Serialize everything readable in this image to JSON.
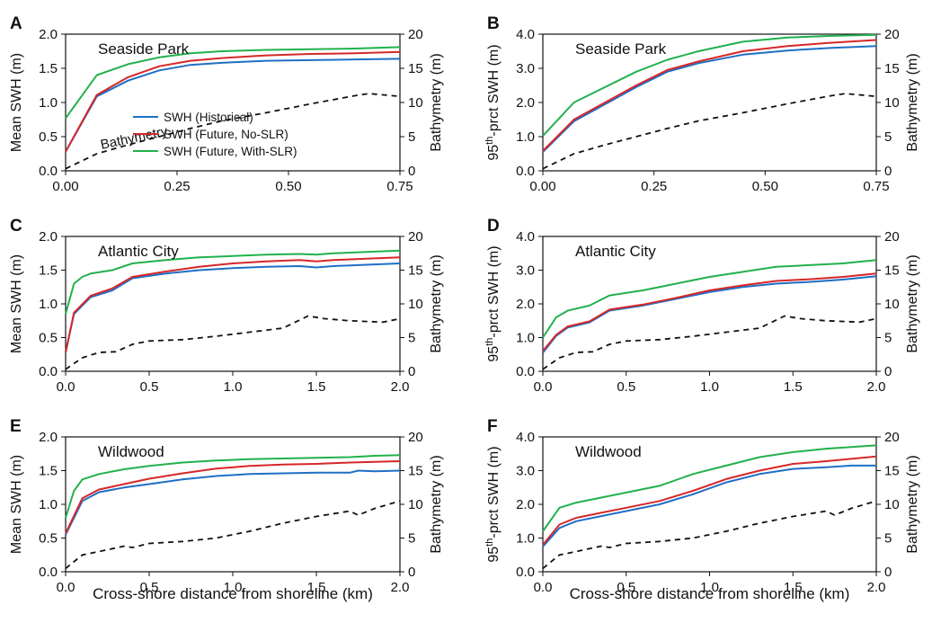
{
  "figure": {
    "xlabel": "Cross-shore distance from shoreline (km)"
  },
  "legend": [
    {
      "label": "SWH (Historical)",
      "color": "#1f6fc5"
    },
    {
      "label": "SWH (Future, No-SLR)",
      "color": "#d62728"
    },
    {
      "label": "SWH (Future, With-SLR)",
      "color": "#22b14c"
    }
  ],
  "chart_data": [
    {
      "panel": "A",
      "type": "line",
      "title": "Seaside Park",
      "ylabel": "Mean SWH (m)",
      "y2label": "Bathymetry (m)",
      "xlim": [
        0,
        0.75
      ],
      "xticks": [
        0,
        0.25,
        0.5,
        0.75
      ],
      "xtick_labels": [
        "0.00",
        "0.25",
        "0.50",
        "0.75"
      ],
      "ylim": [
        0,
        2.0
      ],
      "yticks": [
        0,
        0.5,
        1.0,
        1.5,
        2.0
      ],
      "ytick_labels": [
        "0.0",
        "0.5",
        "1.0",
        "1.5",
        "2.0"
      ],
      "y2lim": [
        0,
        20
      ],
      "y2ticks": [
        0,
        5,
        10,
        15,
        20
      ],
      "annotation": "Bathymetry",
      "series": [
        {
          "name": "SWH (Historical)",
          "color": "#1f6fc5",
          "x": [
            0,
            0.07,
            0.14,
            0.21,
            0.28,
            0.35,
            0.45,
            0.55,
            0.65,
            0.75
          ],
          "y": [
            0.28,
            1.09,
            1.32,
            1.47,
            1.55,
            1.58,
            1.61,
            1.62,
            1.63,
            1.64
          ]
        },
        {
          "name": "SWH (Future, No-SLR)",
          "color": "#d62728",
          "x": [
            0,
            0.07,
            0.14,
            0.21,
            0.28,
            0.35,
            0.45,
            0.55,
            0.65,
            0.75
          ],
          "y": [
            0.28,
            1.11,
            1.37,
            1.53,
            1.61,
            1.65,
            1.69,
            1.71,
            1.72,
            1.74
          ]
        },
        {
          "name": "SWH (Future, With-SLR)",
          "color": "#22b14c",
          "x": [
            0,
            0.07,
            0.14,
            0.21,
            0.28,
            0.35,
            0.45,
            0.55,
            0.65,
            0.75
          ],
          "y": [
            0.77,
            1.4,
            1.56,
            1.66,
            1.72,
            1.75,
            1.77,
            1.78,
            1.79,
            1.81
          ]
        },
        {
          "name": "Bathymetry",
          "color": "#111111",
          "dashed": true,
          "axis": "right",
          "x": [
            0,
            0.07,
            0.14,
            0.21,
            0.28,
            0.35,
            0.45,
            0.55,
            0.65,
            0.68,
            0.75
          ],
          "y": [
            0.3,
            2.5,
            3.8,
            5.0,
            6.2,
            7.3,
            8.5,
            9.8,
            11.0,
            11.3,
            10.9
          ]
        }
      ]
    },
    {
      "panel": "B",
      "type": "line",
      "title": "Seaside Park",
      "ylabel": "95th-prct SWH (m)",
      "ylabel_main": "95",
      "ylabel_sup": "th",
      "ylabel_rest": "-prct SWH (m)",
      "y2label": "Bathymetry (m)",
      "xlim": [
        0,
        0.75
      ],
      "xticks": [
        0,
        0.25,
        0.5,
        0.75
      ],
      "xtick_labels": [
        "0.00",
        "0.25",
        "0.50",
        "0.75"
      ],
      "ylim": [
        0,
        4.0
      ],
      "yticks": [
        0,
        1,
        2,
        3,
        4
      ],
      "ytick_labels": [
        "0.0",
        "1.0",
        "2.0",
        "3.0",
        "4.0"
      ],
      "y2lim": [
        0,
        20
      ],
      "y2ticks": [
        0,
        5,
        10,
        15,
        20
      ],
      "series": [
        {
          "name": "SWH (Historical)",
          "color": "#1f6fc5",
          "x": [
            0,
            0.07,
            0.14,
            0.21,
            0.28,
            0.35,
            0.45,
            0.55,
            0.65,
            0.75
          ],
          "y": [
            0.55,
            1.45,
            1.95,
            2.45,
            2.9,
            3.15,
            3.4,
            3.52,
            3.6,
            3.65
          ]
        },
        {
          "name": "SWH (Future, No-SLR)",
          "color": "#d62728",
          "x": [
            0,
            0.07,
            0.14,
            0.21,
            0.28,
            0.35,
            0.45,
            0.55,
            0.65,
            0.75
          ],
          "y": [
            0.58,
            1.5,
            2.0,
            2.5,
            2.95,
            3.2,
            3.5,
            3.65,
            3.75,
            3.83
          ]
        },
        {
          "name": "SWH (Future, With-SLR)",
          "color": "#22b14c",
          "x": [
            0,
            0.07,
            0.14,
            0.21,
            0.28,
            0.35,
            0.45,
            0.55,
            0.65,
            0.75
          ],
          "y": [
            1.02,
            2.0,
            2.45,
            2.9,
            3.25,
            3.5,
            3.78,
            3.9,
            3.95,
            3.98
          ]
        },
        {
          "name": "Bathymetry",
          "color": "#111111",
          "dashed": true,
          "axis": "right",
          "x": [
            0,
            0.07,
            0.14,
            0.21,
            0.28,
            0.35,
            0.45,
            0.55,
            0.65,
            0.68,
            0.75
          ],
          "y": [
            0.3,
            2.5,
            3.8,
            5.0,
            6.2,
            7.3,
            8.5,
            9.8,
            11.0,
            11.3,
            10.9
          ]
        }
      ]
    },
    {
      "panel": "C",
      "type": "line",
      "title": "Atlantic City",
      "ylabel": "Mean SWH (m)",
      "y2label": "Bathymetry (m)",
      "xlim": [
        0,
        2.0
      ],
      "xticks": [
        0,
        0.5,
        1.0,
        1.5,
        2.0
      ],
      "xtick_labels": [
        "0.0",
        "0.5",
        "1.0",
        "1.5",
        "2.0"
      ],
      "ylim": [
        0,
        2.0
      ],
      "yticks": [
        0,
        0.5,
        1.0,
        1.5,
        2.0
      ],
      "ytick_labels": [
        "0.0",
        "0.5",
        "1.0",
        "1.5",
        "2.0"
      ],
      "y2lim": [
        0,
        20
      ],
      "y2ticks": [
        0,
        5,
        10,
        15,
        20
      ],
      "series": [
        {
          "name": "SWH (Historical)",
          "color": "#1f6fc5",
          "x": [
            0,
            0.05,
            0.15,
            0.28,
            0.4,
            0.6,
            0.8,
            1.0,
            1.2,
            1.4,
            1.5,
            1.6,
            1.8,
            2.0
          ],
          "y": [
            0.28,
            0.85,
            1.1,
            1.2,
            1.38,
            1.45,
            1.5,
            1.53,
            1.55,
            1.56,
            1.54,
            1.56,
            1.58,
            1.6
          ]
        },
        {
          "name": "SWH (Future, No-SLR)",
          "color": "#d62728",
          "x": [
            0,
            0.05,
            0.15,
            0.28,
            0.4,
            0.6,
            0.8,
            1.0,
            1.2,
            1.4,
            1.5,
            1.6,
            1.8,
            2.0
          ],
          "y": [
            0.28,
            0.87,
            1.12,
            1.23,
            1.4,
            1.48,
            1.55,
            1.6,
            1.63,
            1.65,
            1.63,
            1.65,
            1.67,
            1.69
          ]
        },
        {
          "name": "SWH (Future, With-SLR)",
          "color": "#22b14c",
          "x": [
            0,
            0.05,
            0.1,
            0.15,
            0.28,
            0.4,
            0.6,
            0.8,
            1.0,
            1.2,
            1.4,
            1.5,
            1.6,
            1.8,
            2.0
          ],
          "y": [
            0.85,
            1.3,
            1.4,
            1.45,
            1.5,
            1.6,
            1.65,
            1.69,
            1.71,
            1.73,
            1.74,
            1.73,
            1.75,
            1.77,
            1.79
          ]
        },
        {
          "name": "Bathymetry",
          "color": "#111111",
          "dashed": true,
          "axis": "right",
          "x": [
            0,
            0.1,
            0.2,
            0.3,
            0.4,
            0.5,
            0.7,
            0.9,
            1.1,
            1.3,
            1.45,
            1.55,
            1.7,
            1.9,
            2.0
          ],
          "y": [
            0.3,
            2.0,
            2.8,
            2.9,
            4.0,
            4.5,
            4.7,
            5.2,
            5.8,
            6.4,
            8.2,
            7.8,
            7.5,
            7.3,
            7.8
          ]
        }
      ]
    },
    {
      "panel": "D",
      "type": "line",
      "title": "Atlantic City",
      "ylabel": "95th-prct SWH (m)",
      "ylabel_main": "95",
      "ylabel_sup": "th",
      "ylabel_rest": "-prct SWH (m)",
      "y2label": "Bathymetry (m)",
      "xlim": [
        0,
        2.0
      ],
      "xticks": [
        0,
        0.5,
        1.0,
        1.5,
        2.0
      ],
      "xtick_labels": [
        "0.0",
        "0.5",
        "1.0",
        "1.5",
        "2.0"
      ],
      "ylim": [
        0,
        4.0
      ],
      "yticks": [
        0,
        1,
        2,
        3,
        4
      ],
      "ytick_labels": [
        "0.0",
        "1.0",
        "2.0",
        "3.0",
        "4.0"
      ],
      "y2lim": [
        0,
        20
      ],
      "y2ticks": [
        0,
        5,
        10,
        15,
        20
      ],
      "series": [
        {
          "name": "SWH (Historical)",
          "color": "#1f6fc5",
          "x": [
            0,
            0.08,
            0.15,
            0.28,
            0.4,
            0.6,
            0.8,
            1.0,
            1.2,
            1.4,
            1.6,
            1.8,
            2.0
          ],
          "y": [
            0.55,
            1.05,
            1.3,
            1.45,
            1.8,
            1.95,
            2.15,
            2.35,
            2.5,
            2.6,
            2.65,
            2.72,
            2.82
          ]
        },
        {
          "name": "SWH (Future, No-SLR)",
          "color": "#d62728",
          "x": [
            0,
            0.08,
            0.15,
            0.28,
            0.4,
            0.6,
            0.8,
            1.0,
            1.2,
            1.4,
            1.6,
            1.8,
            2.0
          ],
          "y": [
            0.6,
            1.08,
            1.33,
            1.48,
            1.83,
            1.98,
            2.18,
            2.4,
            2.55,
            2.68,
            2.73,
            2.8,
            2.9
          ]
        },
        {
          "name": "SWH (Future, With-SLR)",
          "color": "#22b14c",
          "x": [
            0,
            0.08,
            0.15,
            0.28,
            0.4,
            0.6,
            0.8,
            1.0,
            1.2,
            1.4,
            1.6,
            1.8,
            2.0
          ],
          "y": [
            1.0,
            1.6,
            1.8,
            1.95,
            2.25,
            2.4,
            2.6,
            2.8,
            2.95,
            3.1,
            3.15,
            3.2,
            3.3
          ]
        },
        {
          "name": "Bathymetry",
          "color": "#111111",
          "dashed": true,
          "axis": "right",
          "x": [
            0,
            0.1,
            0.2,
            0.3,
            0.4,
            0.5,
            0.7,
            0.9,
            1.1,
            1.3,
            1.45,
            1.55,
            1.7,
            1.9,
            2.0
          ],
          "y": [
            0.3,
            2.0,
            2.8,
            2.9,
            4.0,
            4.5,
            4.7,
            5.2,
            5.8,
            6.4,
            8.2,
            7.8,
            7.5,
            7.3,
            7.8
          ]
        }
      ]
    },
    {
      "panel": "E",
      "type": "line",
      "title": "Wildwood",
      "ylabel": "Mean SWH (m)",
      "y2label": "Bathymetry (m)",
      "xlim": [
        0,
        2.0
      ],
      "xticks": [
        0,
        0.5,
        1.0,
        1.5,
        2.0
      ],
      "xtick_labels": [
        "0.0",
        "0.5",
        "1.0",
        "1.5",
        "2.0"
      ],
      "ylim": [
        0,
        2.0
      ],
      "yticks": [
        0,
        0.5,
        1.0,
        1.5,
        2.0
      ],
      "ytick_labels": [
        "0.0",
        "0.5",
        "1.0",
        "1.5",
        "2.0"
      ],
      "y2lim": [
        0,
        20
      ],
      "y2ticks": [
        0,
        5,
        10,
        15,
        20
      ],
      "series": [
        {
          "name": "SWH (Historical)",
          "color": "#1f6fc5",
          "x": [
            0,
            0.1,
            0.2,
            0.35,
            0.5,
            0.7,
            0.9,
            1.1,
            1.3,
            1.5,
            1.7,
            1.75,
            1.85,
            2.0
          ],
          "y": [
            0.55,
            1.05,
            1.18,
            1.25,
            1.3,
            1.37,
            1.42,
            1.45,
            1.46,
            1.47,
            1.47,
            1.5,
            1.49,
            1.5
          ]
        },
        {
          "name": "SWH (Future, No-SLR)",
          "color": "#d62728",
          "x": [
            0,
            0.1,
            0.2,
            0.35,
            0.5,
            0.7,
            0.9,
            1.1,
            1.3,
            1.5,
            1.7,
            1.85,
            2.0
          ],
          "y": [
            0.57,
            1.09,
            1.22,
            1.3,
            1.38,
            1.46,
            1.53,
            1.57,
            1.59,
            1.6,
            1.62,
            1.63,
            1.64
          ]
        },
        {
          "name": "SWH (Future, With-SLR)",
          "color": "#22b14c",
          "x": [
            0,
            0.05,
            0.1,
            0.2,
            0.35,
            0.5,
            0.7,
            0.9,
            1.1,
            1.3,
            1.5,
            1.7,
            1.85,
            2.0
          ],
          "y": [
            0.8,
            1.2,
            1.37,
            1.45,
            1.52,
            1.57,
            1.62,
            1.65,
            1.67,
            1.68,
            1.69,
            1.7,
            1.72,
            1.73
          ]
        },
        {
          "name": "Bathymetry",
          "color": "#111111",
          "dashed": true,
          "axis": "right",
          "x": [
            0,
            0.1,
            0.2,
            0.35,
            0.4,
            0.5,
            0.7,
            0.9,
            1.1,
            1.3,
            1.5,
            1.65,
            1.7,
            1.75,
            1.85,
            2.0
          ],
          "y": [
            0.5,
            2.5,
            3.0,
            3.8,
            3.6,
            4.2,
            4.5,
            5.0,
            6.0,
            7.2,
            8.2,
            8.8,
            9.0,
            8.4,
            9.4,
            10.5
          ]
        }
      ]
    },
    {
      "panel": "F",
      "type": "line",
      "title": "Wildwood",
      "ylabel": "95th-prct SWH (m)",
      "ylabel_main": "95",
      "ylabel_sup": "th",
      "ylabel_rest": "-prct SWH (m)",
      "y2label": "Bathymetry (m)",
      "xlim": [
        0,
        2.0
      ],
      "xticks": [
        0,
        0.5,
        1.0,
        1.5,
        2.0
      ],
      "xtick_labels": [
        "0.0",
        "0.5",
        "1.0",
        "1.5",
        "2.0"
      ],
      "ylim": [
        0,
        4.0
      ],
      "yticks": [
        0,
        1,
        2,
        3,
        4
      ],
      "ytick_labels": [
        "0.0",
        "1.0",
        "2.0",
        "3.0",
        "4.0"
      ],
      "y2lim": [
        0,
        20
      ],
      "y2ticks": [
        0,
        5,
        10,
        15,
        20
      ],
      "series": [
        {
          "name": "SWH (Historical)",
          "color": "#1f6fc5",
          "x": [
            0,
            0.1,
            0.2,
            0.35,
            0.5,
            0.7,
            0.9,
            1.1,
            1.3,
            1.5,
            1.7,
            1.85,
            2.0
          ],
          "y": [
            0.75,
            1.3,
            1.5,
            1.65,
            1.8,
            2.0,
            2.3,
            2.65,
            2.9,
            3.05,
            3.1,
            3.15,
            3.15
          ]
        },
        {
          "name": "SWH (Future, No-SLR)",
          "color": "#d62728",
          "x": [
            0,
            0.1,
            0.2,
            0.35,
            0.5,
            0.7,
            0.9,
            1.1,
            1.3,
            1.5,
            1.7,
            1.85,
            2.0
          ],
          "y": [
            0.8,
            1.4,
            1.6,
            1.75,
            1.9,
            2.1,
            2.4,
            2.75,
            3.0,
            3.2,
            3.28,
            3.35,
            3.42
          ]
        },
        {
          "name": "SWH (Future, With-SLR)",
          "color": "#22b14c",
          "x": [
            0,
            0.1,
            0.2,
            0.35,
            0.5,
            0.7,
            0.9,
            1.1,
            1.3,
            1.5,
            1.7,
            1.85,
            2.0
          ],
          "y": [
            1.2,
            1.9,
            2.05,
            2.2,
            2.35,
            2.55,
            2.9,
            3.15,
            3.4,
            3.55,
            3.65,
            3.7,
            3.75
          ]
        },
        {
          "name": "Bathymetry",
          "color": "#111111",
          "dashed": true,
          "axis": "right",
          "x": [
            0,
            0.1,
            0.2,
            0.35,
            0.4,
            0.5,
            0.7,
            0.9,
            1.1,
            1.3,
            1.5,
            1.65,
            1.7,
            1.75,
            1.85,
            2.0
          ],
          "y": [
            0.5,
            2.5,
            3.0,
            3.8,
            3.6,
            4.2,
            4.5,
            5.0,
            6.0,
            7.2,
            8.2,
            8.8,
            9.0,
            8.4,
            9.4,
            10.5
          ]
        }
      ]
    }
  ]
}
